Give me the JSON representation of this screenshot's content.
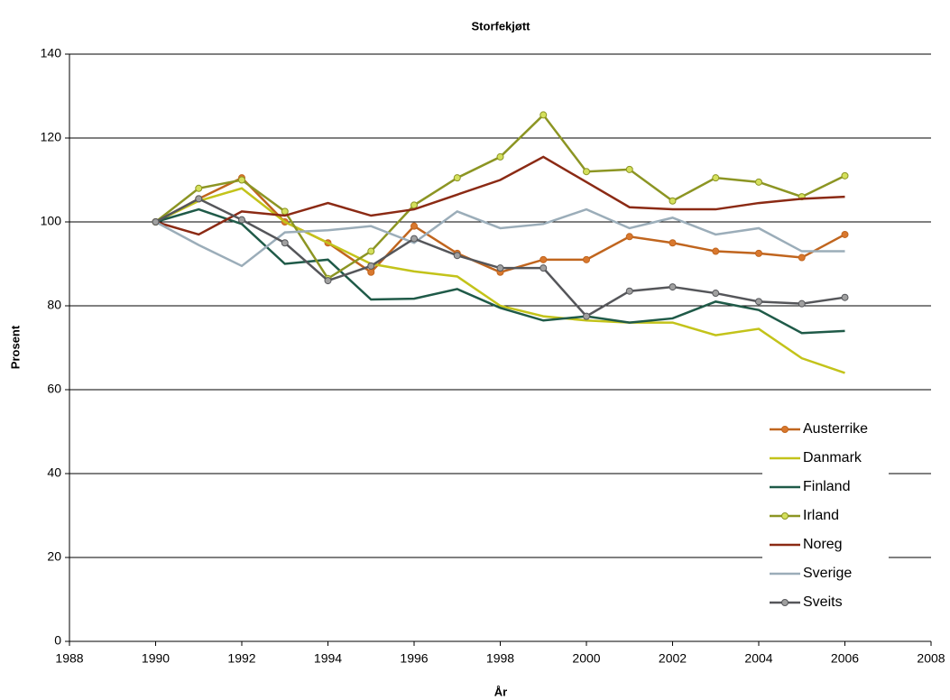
{
  "chart_data": {
    "type": "line",
    "title": "Storfekjøtt",
    "xlabel": "År",
    "ylabel": "Prosent",
    "x": [
      1990,
      1991,
      1992,
      1993,
      1994,
      1995,
      1996,
      1997,
      1998,
      1999,
      2000,
      2001,
      2002,
      2003,
      2004,
      2005,
      2006
    ],
    "xlim": [
      1988,
      2008
    ],
    "xticks": [
      1988,
      1990,
      1992,
      1994,
      1996,
      1998,
      2000,
      2002,
      2004,
      2006,
      2008
    ],
    "ylim": [
      0,
      140
    ],
    "yticks": [
      0,
      20,
      40,
      60,
      80,
      100,
      120,
      140
    ],
    "grid": true,
    "legend": "lower right",
    "series": [
      {
        "name": "Austerrike",
        "color": "#c0651e",
        "marker": true,
        "marker_color": "#d9782e",
        "values": [
          100,
          105.5,
          110.5,
          100,
          95,
          88,
          99,
          92.5,
          88,
          91,
          91,
          96.5,
          95,
          93,
          92.5,
          91.5,
          97
        ]
      },
      {
        "name": "Danmark",
        "color": "#c3c31a",
        "marker": false,
        "values": [
          100,
          105,
          108,
          100,
          95,
          90,
          88.2,
          87,
          80,
          77.5,
          76.5,
          76,
          76,
          73,
          74.5,
          67.5,
          64
        ]
      },
      {
        "name": "Finland",
        "color": "#1f5a48",
        "marker": false,
        "values": [
          100,
          103,
          99.5,
          90,
          91,
          81.5,
          81.7,
          84,
          79.5,
          76.5,
          77.5,
          76,
          77,
          81,
          79,
          73.5,
          74
        ]
      },
      {
        "name": "Irland",
        "color": "#8c9523",
        "marker": true,
        "marker_color": "#d4e05c",
        "values": [
          100,
          108,
          110,
          102.5,
          86.5,
          93,
          104,
          110.5,
          115.5,
          125.5,
          112,
          112.5,
          105,
          110.5,
          109.5,
          106,
          111
        ]
      },
      {
        "name": "Noreg",
        "color": "#8b2a14",
        "marker": false,
        "values": [
          100,
          97,
          102.5,
          101.5,
          104.5,
          101.5,
          103,
          106.5,
          110,
          115.5,
          109.5,
          103.5,
          103,
          103,
          104.5,
          105.5,
          106
        ]
      },
      {
        "name": "Sverige",
        "color": "#9badb9",
        "marker": false,
        "values": [
          100,
          94.5,
          89.5,
          97.5,
          98,
          99,
          95,
          102.5,
          98.5,
          99.5,
          103,
          98.5,
          101,
          97,
          98.5,
          93,
          93
        ]
      },
      {
        "name": "Sveits",
        "color": "#55565a",
        "marker": true,
        "marker_color": "#a0a0a0",
        "values": [
          100,
          105.5,
          100.5,
          95,
          86,
          89.5,
          96,
          92,
          89,
          89,
          77.5,
          83.5,
          84.5,
          83,
          81,
          80.5,
          82
        ]
      }
    ]
  }
}
